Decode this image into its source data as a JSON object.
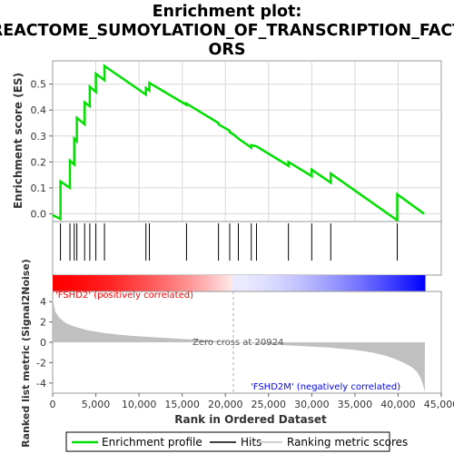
{
  "chart_data": {
    "type": "line",
    "title_line1": "Enrichment plot:",
    "title_line2": "REACTOME_SUMOYLATION_OF_TRANSCRIPTION_FACT",
    "title_line3": "ORS",
    "top_panel": {
      "ylabel": "Enrichment score (ES)",
      "ylim": [
        -0.03,
        0.59
      ],
      "yticks": [
        "0.0",
        "0.1",
        "0.2",
        "0.3",
        "0.4",
        "0.5"
      ],
      "ytick_values": [
        0.0,
        0.1,
        0.2,
        0.3,
        0.4,
        0.5
      ],
      "grid": true,
      "series": [
        {
          "name": "Enrichment profile",
          "color": "#00e000",
          "x": [
            0,
            900,
            901,
            2000,
            2001,
            2500,
            2501,
            2800,
            2801,
            3700,
            3701,
            4300,
            4301,
            5000,
            5001,
            6000,
            6001,
            10800,
            10801,
            11200,
            11201,
            15500,
            15501,
            19200,
            19201,
            20500,
            20501,
            21000,
            21500,
            21501,
            23000,
            23001,
            23600,
            23601,
            27300,
            27301,
            30000,
            30001,
            32200,
            32201,
            39900,
            39901,
            43000
          ],
          "y": [
            -0.005,
            -0.02,
            0.125,
            0.1,
            0.205,
            0.19,
            0.29,
            0.28,
            0.37,
            0.345,
            0.43,
            0.415,
            0.49,
            0.47,
            0.54,
            0.515,
            0.57,
            0.46,
            0.485,
            0.475,
            0.505,
            0.42,
            0.425,
            0.35,
            0.345,
            0.32,
            0.315,
            0.305,
            0.29,
            0.29,
            0.255,
            0.265,
            0.26,
            0.26,
            0.185,
            0.2,
            0.145,
            0.17,
            0.12,
            0.155,
            -0.025,
            0.075,
            0.0
          ]
        }
      ]
    },
    "hits_panel": {
      "hit_positions": [
        900,
        2000,
        2500,
        2800,
        3700,
        4300,
        5000,
        6000,
        10800,
        11200,
        15500,
        19200,
        20500,
        21500,
        23000,
        23600,
        27300,
        30000,
        32200,
        39900
      ]
    },
    "bottom_panel": {
      "ylabel": "Ranked list metric (Signal2Noise)",
      "xlabel": "Rank in Ordered Dataset",
      "ylim": [
        -5,
        5
      ],
      "yticks": [
        "4",
        "2",
        "0",
        "-2",
        "-4"
      ],
      "ytick_values": [
        4,
        2,
        0,
        -2,
        -4
      ],
      "xlim": [
        0,
        45000
      ],
      "xticks": [
        "0",
        "5,000",
        "10,000",
        "15,000",
        "20,000",
        "25,000",
        "30,000",
        "35,000",
        "40,000",
        "45,000"
      ],
      "xtick_values": [
        0,
        5000,
        10000,
        15000,
        20000,
        25000,
        30000,
        35000,
        40000,
        45000
      ],
      "metric_curve": {
        "x": [
          0,
          300,
          800,
          1500,
          2500,
          4000,
          6000,
          9000,
          12000,
          15000,
          18000,
          20924,
          24000,
          28000,
          32000,
          35000,
          37000,
          38500,
          39500,
          40500,
          41500,
          42200,
          42600,
          42900,
          43100
        ],
        "y": [
          4.3,
          3.0,
          2.4,
          1.9,
          1.55,
          1.2,
          0.9,
          0.65,
          0.48,
          0.34,
          0.2,
          0.0,
          -0.15,
          -0.33,
          -0.52,
          -0.75,
          -1.0,
          -1.3,
          -1.6,
          -1.95,
          -2.4,
          -2.9,
          -3.5,
          -4.2,
          -4.9
        ]
      },
      "pos_label": "'FSHD2' (positively correlated)",
      "neg_label": "'FSHD2M' (negatively correlated)",
      "zero_cross_label": "Zero cross at 20924",
      "zero_cross": 20924,
      "pos_color": "#ff0000",
      "neg_color": "#0000ff"
    },
    "legend": [
      {
        "label": "Enrichment profile",
        "color": "#00e000"
      },
      {
        "label": "Hits",
        "color": "#000000"
      },
      {
        "label": "Ranking metric scores",
        "color": "#c0c0c0"
      }
    ]
  }
}
